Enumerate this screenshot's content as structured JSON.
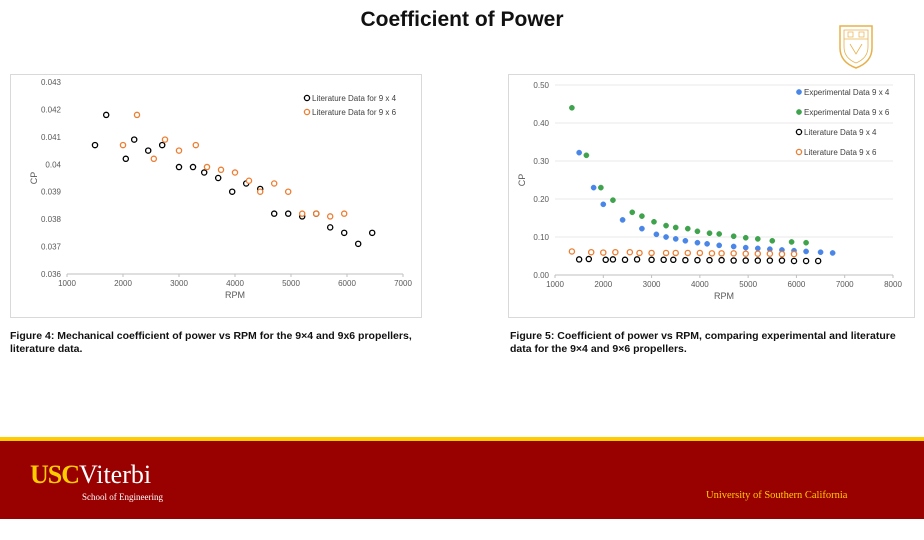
{
  "slide": {
    "title": "Coefficient of Power",
    "caption_left": "Figure 4: Mechanical coefficient of power vs RPM for the 9×4 and 9x6 propellers, literature data.",
    "caption_right": "Figure 5: Coefficient of power vs RPM, comparing experimental and literature data for the 9×4 and 9×6 propellers.",
    "brand_usc": "USC",
    "brand_viterbi": "Viterbi",
    "brand_school": "School of Engineering",
    "university": "University of Southern California"
  },
  "colors": {
    "footer": "#990000",
    "gold": "#ffcc00",
    "orange": "#ed7d31",
    "blue": "#4a86e8",
    "green": "#3fa34d",
    "black": "#000000"
  },
  "chart_data": [
    {
      "type": "scatter",
      "xlabel": "RPM",
      "ylabel": "CP",
      "xlim": [
        1000,
        7000
      ],
      "ylim": [
        0.036,
        0.043
      ],
      "xticks": [
        "1000",
        "2000",
        "3000",
        "4000",
        "5000",
        "6000",
        "7000"
      ],
      "yticks": [
        "0.036",
        "0.037",
        "0.038",
        "0.039",
        "0.04",
        "0.041",
        "0.042",
        "0.043"
      ],
      "legend_position": "top-right",
      "series": [
        {
          "name": "Literature Data for 9 x 4",
          "style": "open-black",
          "points": [
            [
              1500,
              0.0407
            ],
            [
              1700,
              0.0418
            ],
            [
              2050,
              0.0402
            ],
            [
              2200,
              0.0409
            ],
            [
              2450,
              0.0405
            ],
            [
              2700,
              0.0407
            ],
            [
              3000,
              0.0399
            ],
            [
              3250,
              0.0399
            ],
            [
              3450,
              0.0397
            ],
            [
              3700,
              0.0395
            ],
            [
              3950,
              0.039
            ],
            [
              4200,
              0.0393
            ],
            [
              4450,
              0.0391
            ],
            [
              4700,
              0.0382
            ],
            [
              4950,
              0.0382
            ],
            [
              5200,
              0.0381
            ],
            [
              5450,
              0.0382
            ],
            [
              5700,
              0.0377
            ],
            [
              5950,
              0.0375
            ],
            [
              6200,
              0.0371
            ],
            [
              6450,
              0.0375
            ]
          ]
        },
        {
          "name": "Literature Data for 9 x 6",
          "style": "open-orange",
          "points": [
            [
              2000,
              0.0407
            ],
            [
              2250,
              0.0418
            ],
            [
              2550,
              0.0402
            ],
            [
              2750,
              0.0409
            ],
            [
              3000,
              0.0405
            ],
            [
              3300,
              0.0407
            ],
            [
              3500,
              0.0399
            ],
            [
              3750,
              0.0398
            ],
            [
              4000,
              0.0397
            ],
            [
              4250,
              0.0394
            ],
            [
              4450,
              0.039
            ],
            [
              4700,
              0.0393
            ],
            [
              4950,
              0.039
            ],
            [
              5200,
              0.0382
            ],
            [
              5450,
              0.0382
            ],
            [
              5700,
              0.0381
            ],
            [
              5950,
              0.0382
            ]
          ]
        }
      ]
    },
    {
      "type": "scatter",
      "xlabel": "RPM",
      "ylabel": "CP",
      "xlim": [
        1000,
        8000
      ],
      "ylim": [
        0.0,
        0.5
      ],
      "xticks": [
        "1000",
        "2000",
        "3000",
        "4000",
        "5000",
        "6000",
        "7000",
        "8000"
      ],
      "yticks": [
        "0.00",
        "0.10",
        "0.20",
        "0.30",
        "0.40",
        "0.50"
      ],
      "legend_position": "top-right",
      "series": [
        {
          "name": "Experimental Data 9 x 4",
          "style": "filled-blue",
          "points": [
            [
              1500,
              0.322
            ],
            [
              1800,
              0.23
            ],
            [
              2000,
              0.186
            ],
            [
              2400,
              0.145
            ],
            [
              2800,
              0.122
            ],
            [
              3100,
              0.107
            ],
            [
              3300,
              0.1
            ],
            [
              3500,
              0.095
            ],
            [
              3700,
              0.09
            ],
            [
              3950,
              0.085
            ],
            [
              4150,
              0.082
            ],
            [
              4400,
              0.078
            ],
            [
              4700,
              0.075
            ],
            [
              4950,
              0.072
            ],
            [
              5200,
              0.07
            ],
            [
              5450,
              0.068
            ],
            [
              5700,
              0.066
            ],
            [
              5950,
              0.064
            ],
            [
              6200,
              0.062
            ],
            [
              6500,
              0.06
            ],
            [
              6750,
              0.058
            ]
          ]
        },
        {
          "name": "Experimental Data 9 x 6",
          "style": "filled-green",
          "points": [
            [
              1350,
              0.44
            ],
            [
              1650,
              0.315
            ],
            [
              1950,
              0.23
            ],
            [
              2200,
              0.197
            ],
            [
              2600,
              0.165
            ],
            [
              2800,
              0.155
            ],
            [
              3050,
              0.14
            ],
            [
              3300,
              0.13
            ],
            [
              3500,
              0.125
            ],
            [
              3750,
              0.122
            ],
            [
              3950,
              0.115
            ],
            [
              4200,
              0.11
            ],
            [
              4400,
              0.108
            ],
            [
              4700,
              0.102
            ],
            [
              4950,
              0.098
            ],
            [
              5200,
              0.095
            ],
            [
              5500,
              0.09
            ],
            [
              5900,
              0.087
            ],
            [
              6200,
              0.085
            ]
          ]
        },
        {
          "name": "Literature Data 9 x 4",
          "style": "open-black",
          "points": [
            [
              1500,
              0.041
            ],
            [
              1700,
              0.042
            ],
            [
              2050,
              0.04
            ],
            [
              2200,
              0.041
            ],
            [
              2450,
              0.04
            ],
            [
              2700,
              0.041
            ],
            [
              3000,
              0.04
            ],
            [
              3250,
              0.04
            ],
            [
              3450,
              0.04
            ],
            [
              3700,
              0.039
            ],
            [
              3950,
              0.039
            ],
            [
              4200,
              0.039
            ],
            [
              4450,
              0.039
            ],
            [
              4700,
              0.038
            ],
            [
              4950,
              0.038
            ],
            [
              5200,
              0.038
            ],
            [
              5450,
              0.038
            ],
            [
              5700,
              0.038
            ],
            [
              5950,
              0.037
            ],
            [
              6200,
              0.037
            ],
            [
              6450,
              0.037
            ]
          ]
        },
        {
          "name": "Literature Data 9 x 6",
          "style": "open-orange",
          "points": [
            [
              1350,
              0.062
            ],
            [
              1750,
              0.06
            ],
            [
              2000,
              0.059
            ],
            [
              2250,
              0.06
            ],
            [
              2550,
              0.06
            ],
            [
              2750,
              0.058
            ],
            [
              3000,
              0.058
            ],
            [
              3300,
              0.058
            ],
            [
              3500,
              0.058
            ],
            [
              3750,
              0.058
            ],
            [
              4000,
              0.058
            ],
            [
              4250,
              0.057
            ],
            [
              4450,
              0.057
            ],
            [
              4700,
              0.057
            ],
            [
              4950,
              0.056
            ],
            [
              5200,
              0.056
            ],
            [
              5450,
              0.056
            ],
            [
              5700,
              0.055
            ],
            [
              5950,
              0.055
            ]
          ]
        }
      ]
    }
  ]
}
